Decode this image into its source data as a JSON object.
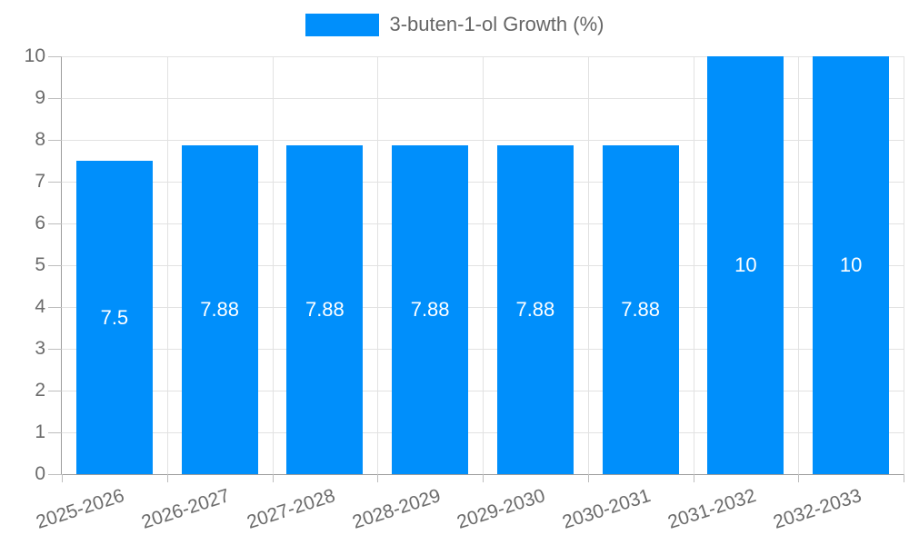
{
  "legend": {
    "label": "3-buten-1-ol Growth (%)"
  },
  "chart_data": {
    "type": "bar",
    "title": "",
    "xlabel": "",
    "ylabel": "",
    "categories": [
      "2025-2026",
      "2026-2027",
      "2027-2028",
      "2028-2029",
      "2029-2030",
      "2030-2031",
      "2031-2032",
      "2032-2033"
    ],
    "series": [
      {
        "name": "3-buten-1-ol Growth (%)",
        "values": [
          7.5,
          7.88,
          7.88,
          7.88,
          7.88,
          7.88,
          10,
          10
        ]
      }
    ],
    "data_labels": [
      "7.5",
      "7.88",
      "7.88",
      "7.88",
      "7.88",
      "7.88",
      "10",
      "10"
    ],
    "ylim": [
      0,
      10
    ],
    "yticks": [
      0,
      1,
      2,
      3,
      4,
      5,
      6,
      7,
      8,
      9,
      10
    ],
    "grid": true,
    "legend_position": "top",
    "x_label_rotation_deg": -18,
    "colors": {
      "bar": "#008FFB",
      "grid": "#e2e2e2",
      "axis": "#9c9c9c",
      "tick": "#bdbdbd",
      "text": "#6b6b6b",
      "data_label": "#ffffff",
      "background": "#ffffff"
    }
  }
}
